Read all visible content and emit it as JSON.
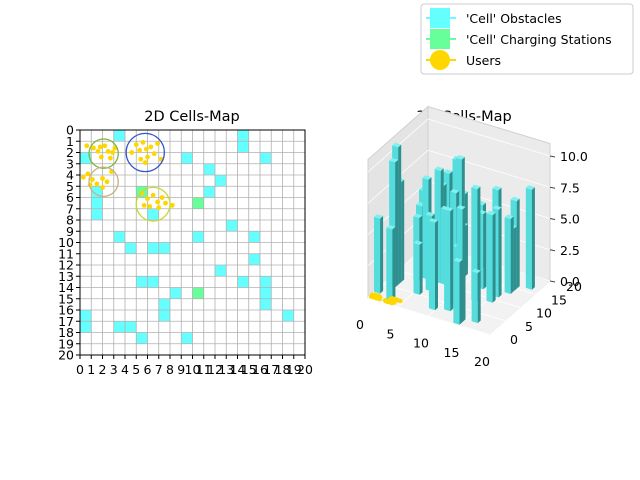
{
  "legend": {
    "placement": "top-right",
    "entries": [
      {
        "label": "'Cell' Obstacles",
        "color": "#66ffff",
        "marker": "square"
      },
      {
        "label": "'Cell' Charging Stations",
        "color": "#66ff99",
        "marker": "square"
      },
      {
        "label": "Users",
        "color": "#ffd700",
        "marker": "circle"
      }
    ]
  },
  "chart_data": [
    {
      "type": "heatmap",
      "title": "2D Cells-Map",
      "xlim": [
        0,
        20
      ],
      "ylim": [
        0,
        20
      ],
      "y_inverted": true,
      "grid": true,
      "xticks": [
        "0",
        "1",
        "2",
        "3",
        "4",
        "5",
        "6",
        "7",
        "8",
        "9",
        "10",
        "11",
        "12",
        "13",
        "14",
        "15",
        "16",
        "17",
        "18",
        "19",
        "20"
      ],
      "yticks": [
        "0",
        "1",
        "2",
        "3",
        "4",
        "5",
        "6",
        "7",
        "8",
        "9",
        "10",
        "11",
        "12",
        "13",
        "14",
        "15",
        "16",
        "17",
        "18",
        "19",
        "20"
      ],
      "obstacle_cells": [
        [
          3,
          0
        ],
        [
          14,
          0
        ],
        [
          14,
          1
        ],
        [
          0,
          2
        ],
        [
          9,
          2
        ],
        [
          16,
          2
        ],
        [
          11,
          3
        ],
        [
          12,
          4
        ],
        [
          1,
          5
        ],
        [
          5,
          5
        ],
        [
          11,
          5
        ],
        [
          1,
          6
        ],
        [
          1,
          7
        ],
        [
          6,
          7
        ],
        [
          13,
          8
        ],
        [
          3,
          9
        ],
        [
          15,
          9
        ],
        [
          4,
          10
        ],
        [
          6,
          10
        ],
        [
          7,
          10
        ],
        [
          10,
          9
        ],
        [
          15,
          11
        ],
        [
          12,
          12
        ],
        [
          5,
          13
        ],
        [
          6,
          13
        ],
        [
          14,
          13
        ],
        [
          16,
          13
        ],
        [
          8,
          14
        ],
        [
          16,
          14
        ],
        [
          7,
          15
        ],
        [
          16,
          15
        ],
        [
          7,
          16
        ],
        [
          18,
          16
        ],
        [
          0,
          16
        ],
        [
          0,
          17
        ],
        [
          3,
          17
        ],
        [
          4,
          17
        ],
        [
          5,
          18
        ],
        [
          9,
          18
        ]
      ],
      "charging_cells": [
        [
          10,
          6
        ],
        [
          5,
          5
        ],
        [
          10,
          14
        ]
      ],
      "user_clusters": [
        {
          "center": [
            2.1,
            2.1
          ],
          "radius": 1.3,
          "ring_color": "#7db33a"
        },
        {
          "center": [
            5.8,
            2.0
          ],
          "radius": 1.7,
          "ring_color": "#3355cc"
        },
        {
          "center": [
            2.1,
            4.6
          ],
          "radius": 1.3,
          "ring_color": "#c8b080"
        },
        {
          "center": [
            6.5,
            6.6
          ],
          "radius": 1.5,
          "ring_color": "#c8d830"
        }
      ],
      "users": [
        [
          0.6,
          1.4
        ],
        [
          1.2,
          1.6
        ],
        [
          1.6,
          1.9
        ],
        [
          1.8,
          1.5
        ],
        [
          2.2,
          1.4
        ],
        [
          2.5,
          1.9
        ],
        [
          2.9,
          2.0
        ],
        [
          3.1,
          1.6
        ],
        [
          1.9,
          2.4
        ],
        [
          2.7,
          2.5
        ],
        [
          5.0,
          1.3
        ],
        [
          5.3,
          1.8
        ],
        [
          5.6,
          1.1
        ],
        [
          5.9,
          1.7
        ],
        [
          6.3,
          1.5
        ],
        [
          6.6,
          2.1
        ],
        [
          5.4,
          2.6
        ],
        [
          6.0,
          2.4
        ],
        [
          4.6,
          2.0
        ],
        [
          7.2,
          2.6
        ],
        [
          5.8,
          2.9
        ],
        [
          6.9,
          1.2
        ],
        [
          0.3,
          4.2
        ],
        [
          0.7,
          3.9
        ],
        [
          1.1,
          4.4
        ],
        [
          1.5,
          4.8
        ],
        [
          2.0,
          4.3
        ],
        [
          2.4,
          4.6
        ],
        [
          2.8,
          3.7
        ],
        [
          2.0,
          5.1
        ],
        [
          0.9,
          4.9
        ],
        [
          5.5,
          5.6
        ],
        [
          6.0,
          6.1
        ],
        [
          6.5,
          5.8
        ],
        [
          6.9,
          6.4
        ],
        [
          7.3,
          6.0
        ],
        [
          6.2,
          6.8
        ],
        [
          5.7,
          6.7
        ],
        [
          7.0,
          6.9
        ],
        [
          7.6,
          6.5
        ],
        [
          8.2,
          6.7
        ]
      ]
    },
    {
      "type": "bar3d",
      "title": "3D Cells-Map",
      "xticks": [
        "0",
        "5",
        "10",
        "15",
        "20"
      ],
      "yticks": [
        "0",
        "5",
        "10",
        "15",
        "20"
      ],
      "zticks": [
        "0.0",
        "2.5",
        "5.0",
        "7.5",
        "10.0"
      ],
      "zlim": [
        0,
        11
      ],
      "bar_color": "#55dddd",
      "buildings": [
        [
          3,
          0,
          6
        ],
        [
          14,
          0,
          5
        ],
        [
          14,
          1,
          9
        ],
        [
          0,
          2,
          6
        ],
        [
          9,
          2,
          7
        ],
        [
          16,
          2,
          4
        ],
        [
          11,
          3,
          8
        ],
        [
          12,
          4,
          5
        ],
        [
          1,
          5,
          10
        ],
        [
          5,
          5,
          4
        ],
        [
          11,
          5,
          9
        ],
        [
          1,
          6,
          11
        ],
        [
          1,
          7,
          8
        ],
        [
          6,
          7,
          6
        ],
        [
          13,
          8,
          9
        ],
        [
          3,
          9,
          5
        ],
        [
          15,
          9,
          7
        ],
        [
          4,
          10,
          8
        ],
        [
          6,
          10,
          9
        ],
        [
          7,
          10,
          6
        ],
        [
          10,
          9,
          4
        ],
        [
          15,
          11,
          7
        ],
        [
          12,
          12,
          6
        ],
        [
          5,
          13,
          7
        ],
        [
          6,
          13,
          5
        ],
        [
          14,
          13,
          8
        ],
        [
          16,
          13,
          6
        ],
        [
          8,
          14,
          4
        ],
        [
          16,
          14,
          5
        ],
        [
          7,
          15,
          9
        ],
        [
          16,
          15,
          7
        ],
        [
          7,
          16,
          6
        ],
        [
          18,
          16,
          8
        ],
        [
          0,
          16,
          4
        ],
        [
          0,
          17,
          5
        ],
        [
          3,
          17,
          6
        ],
        [
          4,
          17,
          7
        ],
        [
          5,
          18,
          8
        ],
        [
          9,
          18,
          5
        ]
      ]
    }
  ]
}
